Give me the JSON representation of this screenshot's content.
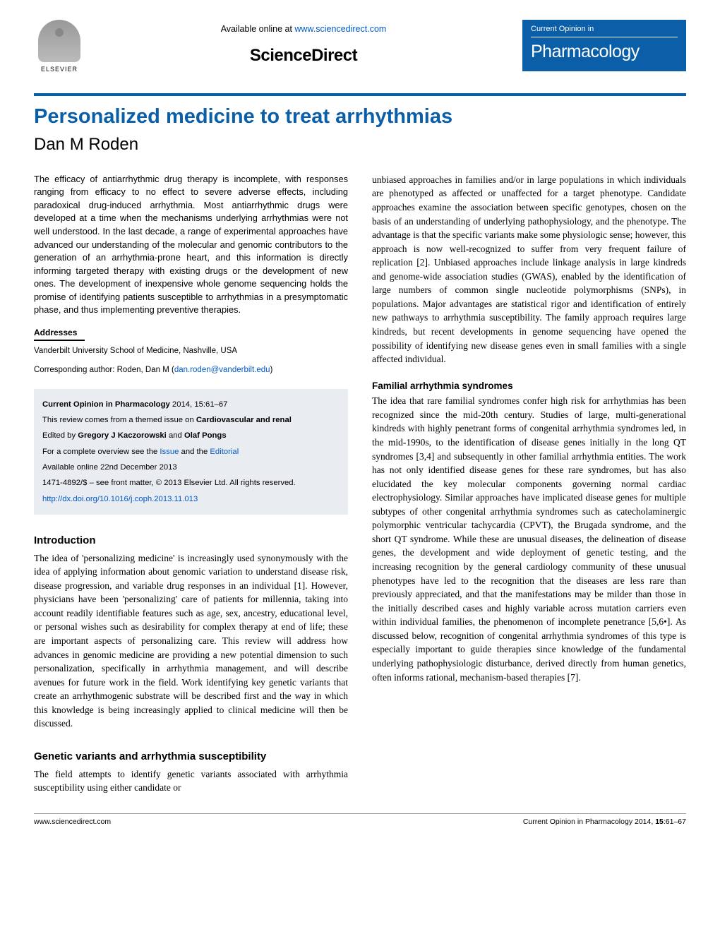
{
  "header": {
    "elsevier_label": "ELSEVIER",
    "available_prefix": "Available online at ",
    "available_url": "www.sciencedirect.com",
    "sciencedirect": "ScienceDirect",
    "journal_small": "Current Opinion in",
    "journal_big": "Pharmacology"
  },
  "article": {
    "title": "Personalized medicine to treat arrhythmias",
    "author": "Dan M Roden"
  },
  "abstract": "The efficacy of antiarrhythmic drug therapy is incomplete, with responses ranging from efficacy to no effect to severe adverse effects, including paradoxical drug-induced arrhythmia. Most antiarrhythmic drugs were developed at a time when the mechanisms underlying arrhythmias were not well understood. In the last decade, a range of experimental approaches have advanced our understanding of the molecular and genomic contributors to the generation of an arrhythmia-prone heart, and this information is directly informing targeted therapy with existing drugs or the development of new ones. The development of inexpensive whole genome sequencing holds the promise of identifying patients susceptible to arrhythmias in a presymptomatic phase, and thus implementing preventive therapies.",
  "addresses": {
    "head": "Addresses",
    "body": "Vanderbilt University School of Medicine, Nashville, USA",
    "corr_label": "Corresponding author: Roden, Dan M (",
    "corr_email": "dan.roden@vanderbilt.edu",
    "corr_close": ")"
  },
  "infobox": {
    "citation_bold": "Current Opinion in Pharmacology",
    "citation_rest": " 2014, 15:61–67",
    "themed_prefix": "This review comes from a themed issue on ",
    "themed_bold": "Cardiovascular and renal",
    "edited_prefix": "Edited by ",
    "editors": "Gregory J Kaczorowski",
    "editors_and": " and ",
    "editors2": "Olaf Pongs",
    "overview_prefix": "For a complete overview see the ",
    "overview_issue": "Issue",
    "overview_and": " and the ",
    "overview_editorial": "Editorial",
    "avail_date": "Available online 22nd December 2013",
    "issn_line": "1471-4892/$ – see front matter, © 2013 Elsevier Ltd. All rights reserved.",
    "doi": "http://dx.doi.org/10.1016/j.coph.2013.11.013"
  },
  "sections": {
    "intro_head": "Introduction",
    "intro_body": "The idea of 'personalizing medicine' is increasingly used synonymously with the idea of applying information about genomic variation to understand disease risk, disease progression, and variable drug responses in an individual [1]. However, physicians have been 'personalizing' care of patients for millennia, taking into account readily identifiable features such as age, sex, ancestry, educational level, or personal wishes such as desirability for complex therapy at end of life; these are important aspects of personalizing care. This review will address how advances in genomic medicine are providing a new potential dimension to such personalization, specifically in arrhythmia management, and will describe avenues for future work in the field. Work identifying key genetic variants that create an arrhythmogenic substrate will be described first and the way in which this knowledge is being increasingly applied to clinical medicine will then be discussed.",
    "gv_head": "Genetic variants and arrhythmia susceptibility",
    "gv_body_l": "The field attempts to identify genetic variants associated with arrhythmia susceptibility using either candidate or",
    "gv_body_r": "unbiased approaches in families and/or in large populations in which individuals are phenotyped as affected or unaffected for a target phenotype. Candidate approaches examine the association between specific genotypes, chosen on the basis of an understanding of underlying pathophysiology, and the phenotype. The advantage is that the specific variants make some physiologic sense; however, this approach is now well-recognized to suffer from very frequent failure of replication [2]. Unbiased approaches include linkage analysis in large kindreds and genome-wide association studies (GWAS), enabled by the identification of large numbers of common single nucleotide polymorphisms (SNPs), in populations. Major advantages are statistical rigor and identification of entirely new pathways to arrhythmia susceptibility. The family approach requires large kindreds, but recent developments in genome sequencing have opened the possibility of identifying new disease genes even in small families with a single affected individual.",
    "fam_head": "Familial arrhythmia syndromes",
    "fam_body": "The idea that rare familial syndromes confer high risk for arrhythmias has been recognized since the mid-20th century. Studies of large, multi-generational kindreds with highly penetrant forms of congenital arrhythmia syndromes led, in the mid-1990s, to the identification of disease genes initially in the long QT syndromes [3,4] and subsequently in other familial arrhythmia entities. The work has not only identified disease genes for these rare syndromes, but has also elucidated the key molecular components governing normal cardiac electrophysiology. Similar approaches have implicated disease genes for multiple subtypes of other congenital arrhythmia syndromes such as catecholaminergic polymorphic ventricular tachycardia (CPVT), the Brugada syndrome, and the short QT syndrome. While these are unusual diseases, the delineation of disease genes, the development and wide deployment of genetic testing, and the increasing recognition by the general cardiology community of these unusual phenotypes have led to the recognition that the diseases are less rare than previously appreciated, and that the manifestations may be milder than those in the initially described cases and highly variable across mutation carriers even within individual families, the phenomenon of incomplete penetrance [5,6•]. As discussed below, recognition of congenital arrhythmia syndromes of this type is especially important to guide therapies since knowledge of the fundamental underlying pathophysiologic disturbance, derived directly from human genetics, often informs rational, mechanism-based therapies [7]."
  },
  "footer": {
    "left": "www.sciencedirect.com",
    "right_prefix": "Current Opinion in Pharmacology 2014, ",
    "right_bold": "15",
    "right_suffix": ":61–67"
  },
  "colors": {
    "brand_blue": "#0a5fa8",
    "link_blue": "#0058c7",
    "infobox_bg": "#e9edf1"
  }
}
